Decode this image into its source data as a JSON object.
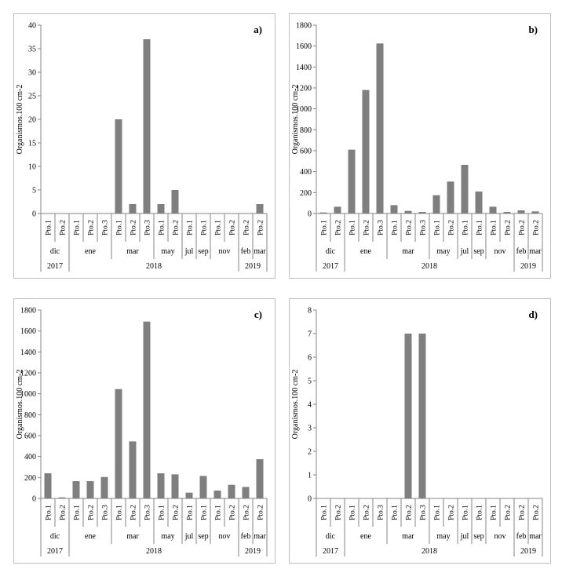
{
  "chart_data": [
    {
      "type": "bar",
      "panel_label": "a)",
      "ylabel": "Organismos.100 cm-2",
      "ylim": [
        0,
        40
      ],
      "yticks": [
        0,
        5,
        10,
        15,
        20,
        25,
        30,
        35,
        40
      ],
      "categories": [
        "Pto.1",
        "Pto.2",
        "Pto.1",
        "Pto.2",
        "Pto.3",
        "Pto.1",
        "Pto.2",
        "Pto.3",
        "Pto.1",
        "Pto.2",
        "Pto.1",
        "Pto.1",
        "Pto.1",
        "Pto.2",
        "Pto.2",
        "Pto.2"
      ],
      "values": [
        0,
        0,
        0,
        0,
        0,
        20,
        2,
        37,
        2,
        5,
        0,
        0,
        0,
        0,
        0,
        2
      ],
      "months": [
        {
          "label": "dic",
          "count": 2
        },
        {
          "label": "ene",
          "count": 3
        },
        {
          "label": "mar",
          "count": 3
        },
        {
          "label": "may",
          "count": 2
        },
        {
          "label": "jul",
          "count": 1
        },
        {
          "label": "sep",
          "count": 1
        },
        {
          "label": "nov",
          "count": 2
        },
        {
          "label": "feb",
          "count": 1
        },
        {
          "label": "mar",
          "count": 1
        }
      ],
      "years": [
        {
          "label": "2017",
          "count": 2
        },
        {
          "label": "2018",
          "count": 12
        },
        {
          "label": "2019",
          "count": 2
        }
      ],
      "bar_color": "#7f7f7f",
      "grid": false
    },
    {
      "type": "bar",
      "panel_label": "b)",
      "ylabel": "Organismos.100 cm-2",
      "ylim": [
        0,
        1800
      ],
      "yticks": [
        0,
        200,
        400,
        600,
        800,
        1000,
        1200,
        1400,
        1600,
        1800
      ],
      "categories": [
        "Pto.1",
        "Pto.2",
        "Pto.1",
        "Pto.2",
        "Pto.3",
        "Pto.1",
        "Pto.2",
        "Pto.3",
        "Pto.1",
        "Pto.2",
        "Pto.1",
        "Pto.1",
        "Pto.1",
        "Pto.2",
        "Pto.2",
        "Pto.2"
      ],
      "values": [
        10,
        65,
        610,
        1180,
        1625,
        80,
        25,
        15,
        175,
        305,
        465,
        210,
        65,
        15,
        30,
        20
      ],
      "months": [
        {
          "label": "dic",
          "count": 2
        },
        {
          "label": "ene",
          "count": 3
        },
        {
          "label": "mar",
          "count": 3
        },
        {
          "label": "may",
          "count": 2
        },
        {
          "label": "jul",
          "count": 1
        },
        {
          "label": "sep",
          "count": 1
        },
        {
          "label": "nov",
          "count": 2
        },
        {
          "label": "feb",
          "count": 1
        },
        {
          "label": "mar",
          "count": 1
        }
      ],
      "years": [
        {
          "label": "2017",
          "count": 2
        },
        {
          "label": "2018",
          "count": 12
        },
        {
          "label": "2019",
          "count": 2
        }
      ],
      "bar_color": "#7f7f7f",
      "grid": false
    },
    {
      "type": "bar",
      "panel_label": "c)",
      "ylabel": "Organismos.100 cm-2",
      "ylim": [
        0,
        1800
      ],
      "yticks": [
        0,
        200,
        400,
        600,
        800,
        1000,
        1200,
        1400,
        1600,
        1800
      ],
      "categories": [
        "Pto.1",
        "Pto.2",
        "Pto.1",
        "Pto.2",
        "Pto.3",
        "Pto.1",
        "Pto.2",
        "Pto.3",
        "Pto.1",
        "Pto.2",
        "Pto.1",
        "Pto.1",
        "Pto.1",
        "Pto.2",
        "Pto.2",
        "Pto.2"
      ],
      "values": [
        240,
        10,
        165,
        165,
        205,
        1045,
        545,
        1690,
        240,
        230,
        55,
        215,
        75,
        130,
        110,
        375
      ],
      "months": [
        {
          "label": "dic",
          "count": 2
        },
        {
          "label": "ene",
          "count": 3
        },
        {
          "label": "mar",
          "count": 3
        },
        {
          "label": "may",
          "count": 2
        },
        {
          "label": "jul",
          "count": 1
        },
        {
          "label": "sep",
          "count": 1
        },
        {
          "label": "nov",
          "count": 2
        },
        {
          "label": "feb",
          "count": 1
        },
        {
          "label": "mar",
          "count": 1
        }
      ],
      "years": [
        {
          "label": "2017",
          "count": 2
        },
        {
          "label": "2018",
          "count": 12
        },
        {
          "label": "2019",
          "count": 2
        }
      ],
      "bar_color": "#7f7f7f",
      "grid": false
    },
    {
      "type": "bar",
      "panel_label": "d)",
      "ylabel": "Organismos.100 cm-2",
      "ylim": [
        0,
        8
      ],
      "yticks": [
        0,
        1,
        2,
        3,
        4,
        5,
        6,
        7,
        8
      ],
      "categories": [
        "Pto.1",
        "Pto.2",
        "Pto.1",
        "Pto.2",
        "Pto.3",
        "Pto.1",
        "Pto.2",
        "Pto.3",
        "Pto.1",
        "Pto.2",
        "Pto.1",
        "Pto.1",
        "Pto.1",
        "Pto.2",
        "Pto.2",
        "Pto.2"
      ],
      "values": [
        0,
        0,
        0,
        0,
        0,
        0,
        7,
        7,
        0,
        0,
        0,
        0,
        0,
        0,
        0,
        0
      ],
      "months": [
        {
          "label": "dic",
          "count": 2
        },
        {
          "label": "ene",
          "count": 3
        },
        {
          "label": "mar",
          "count": 3
        },
        {
          "label": "may",
          "count": 2
        },
        {
          "label": "jul",
          "count": 1
        },
        {
          "label": "sep",
          "count": 1
        },
        {
          "label": "nov",
          "count": 2
        },
        {
          "label": "feb",
          "count": 1
        },
        {
          "label": "mar",
          "count": 1
        }
      ],
      "years": [
        {
          "label": "2017",
          "count": 2
        },
        {
          "label": "2018",
          "count": 12
        },
        {
          "label": "2019",
          "count": 2
        }
      ],
      "bar_color": "#7f7f7f",
      "grid": false
    }
  ]
}
